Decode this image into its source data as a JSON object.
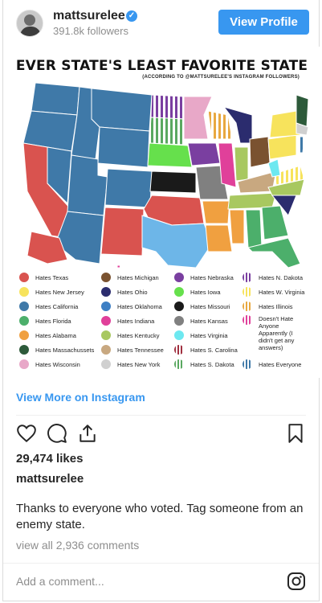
{
  "post": {
    "username": "mattsurelee",
    "followers": "391.8k followers",
    "view_profile": "View Profile",
    "view_more": "View More on Instagram",
    "likes": "29,474 likes",
    "caption_user": "mattsurelee",
    "caption": "Thanks to everyone who voted. Tag someone from an enemy state.",
    "view_comments": "view all 2,936 comments",
    "add_comment_placeholder": "Add a comment..."
  },
  "map": {
    "title": "EVER STATE'S LEAST FAVORITE STATE",
    "subtitle": "(ACCORDING TO @MATTSURELEE'S INSTAGRAM FOLLOWERS)",
    "legend_col1": [
      {
        "label": "Hates Texas",
        "color": "#d9534f"
      },
      {
        "label": "Hates New Jersey",
        "color": "#f7e35c"
      },
      {
        "label": "Hates California",
        "color": "#3f79a8"
      },
      {
        "label": "Hates Florida",
        "color": "#4caf6b"
      },
      {
        "label": "Hates Alabama",
        "color": "#f0a040"
      },
      {
        "label": "Hates Massachussets",
        "color": "#2d5a3a"
      },
      {
        "label": "Hates Wisconsin",
        "color": "#e8a8c8"
      }
    ],
    "legend_col2": [
      {
        "label": "Hates Michigan",
        "color": "#7a5230"
      },
      {
        "label": "Hates Ohio",
        "color": "#2b2c6e"
      },
      {
        "label": "Hates Oklahoma",
        "color": "#3d7fc4"
      },
      {
        "label": "Hates Indiana",
        "color": "#e0409a"
      },
      {
        "label": "Hates Kentucky",
        "color": "#a8c860"
      },
      {
        "label": "Hates Tennessee",
        "color": "#c8a880"
      },
      {
        "label": "Hates New York",
        "color": "#d0d0d0"
      }
    ],
    "legend_col3": [
      {
        "label": "Hates Nebraska",
        "color": "#7a3fa0"
      },
      {
        "label": "Hates Iowa",
        "color": "#66e04c"
      },
      {
        "label": "Hates Missouri",
        "color": "#1a1a1a"
      },
      {
        "label": "Hates Kansas",
        "color": "#808080"
      },
      {
        "label": "Hates Virginia",
        "color": "#6de8f0"
      },
      {
        "label": "Hates S. Carolina",
        "color": "#a03040"
      },
      {
        "label": "Hates S. Dakota",
        "color": "#5aa860"
      }
    ],
    "legend_col4": [
      {
        "label": "Hates N. Dakota",
        "color": "#7a3fa0"
      },
      {
        "label": "Hates W. Virginia",
        "color": "#f7e35c"
      },
      {
        "label": "Hates Illinois",
        "color": "#e8a840"
      },
      {
        "label": "Doesn't Hate Anyone Apparently (I didn't get any answers)",
        "color": "#e0409a"
      },
      {
        "label": "Hates Everyone",
        "color": "#3f79a8"
      }
    ]
  }
}
